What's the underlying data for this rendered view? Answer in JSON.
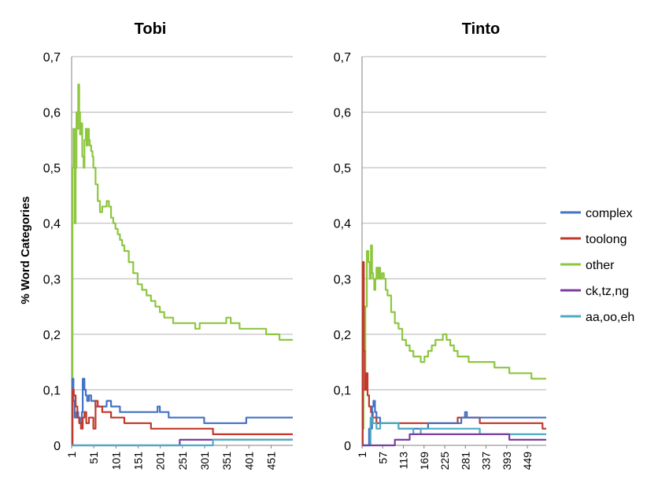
{
  "chart_data": {
    "type": "line",
    "ylabel": "% Word Categories",
    "ylim": [
      0,
      0.7
    ],
    "yticks": [
      "0",
      "0,1",
      "0,2",
      "0,3",
      "0,4",
      "0,5",
      "0,6",
      "0,7"
    ],
    "grid": true,
    "legend": {
      "position": "right",
      "entries": [
        {
          "name": "complex",
          "color": "#4472C4"
        },
        {
          "name": "toolong",
          "color": "#C0392B"
        },
        {
          "name": "other",
          "color": "#8DC63F"
        },
        {
          "name": "ck,tz,ng",
          "color": "#7B3FA0"
        },
        {
          "name": "aa,oo,eh",
          "color": "#4BACC6"
        }
      ]
    },
    "panels": [
      {
        "title": "Tobi",
        "xlim": [
          1,
          500
        ],
        "xticks": [
          "1",
          "51",
          "101",
          "151",
          "201",
          "251",
          "301",
          "351",
          "401",
          "451"
        ],
        "xtick_values": [
          1,
          51,
          101,
          151,
          201,
          251,
          301,
          351,
          401,
          451
        ],
        "series": [
          {
            "name": "other",
            "x": [
              1,
              3,
              5,
              8,
              10,
              12,
              14,
              16,
              18,
              20,
              22,
              25,
              28,
              30,
              33,
              35,
              38,
              40,
              42,
              45,
              48,
              50,
              55,
              60,
              65,
              70,
              75,
              80,
              85,
              90,
              95,
              100,
              105,
              110,
              115,
              120,
              130,
              140,
              150,
              160,
              170,
              180,
              190,
              200,
              210,
              220,
              230,
              240,
              250,
              260,
              270,
              280,
              290,
              300,
              310,
              320,
              330,
              340,
              350,
              360,
              370,
              380,
              390,
              400,
              410,
              420,
              430,
              440,
              450,
              460,
              470,
              480,
              490,
              500
            ],
            "y": [
              0.07,
              0.5,
              0.57,
              0.4,
              0.5,
              0.6,
              0.57,
              0.65,
              0.6,
              0.56,
              0.58,
              0.52,
              0.5,
              0.55,
              0.57,
              0.54,
              0.57,
              0.55,
              0.54,
              0.53,
              0.52,
              0.5,
              0.47,
              0.44,
              0.42,
              0.43,
              0.43,
              0.44,
              0.43,
              0.41,
              0.4,
              0.39,
              0.38,
              0.37,
              0.36,
              0.35,
              0.33,
              0.31,
              0.29,
              0.28,
              0.27,
              0.26,
              0.25,
              0.24,
              0.23,
              0.23,
              0.22,
              0.22,
              0.22,
              0.22,
              0.22,
              0.21,
              0.22,
              0.22,
              0.22,
              0.22,
              0.22,
              0.22,
              0.23,
              0.22,
              0.22,
              0.21,
              0.21,
              0.21,
              0.21,
              0.21,
              0.21,
              0.2,
              0.2,
              0.2,
              0.19,
              0.19,
              0.19,
              0.19
            ]
          },
          {
            "name": "complex",
            "x": [
              1,
              3,
              5,
              8,
              12,
              16,
              20,
              24,
              26,
              30,
              33,
              36,
              40,
              45,
              50,
              55,
              60,
              70,
              80,
              90,
              100,
              110,
              120,
              130,
              150,
              170,
              190,
              195,
              200,
              220,
              240,
              260,
              280,
              300,
              320,
              340,
              360,
              380,
              390,
              395,
              400,
              420,
              450,
              470,
              500
            ],
            "y": [
              0.0,
              0.12,
              0.08,
              0.05,
              0.06,
              0.05,
              0.04,
              0.06,
              0.12,
              0.1,
              0.09,
              0.08,
              0.09,
              0.08,
              0.08,
              0.07,
              0.07,
              0.07,
              0.08,
              0.07,
              0.07,
              0.06,
              0.06,
              0.06,
              0.06,
              0.06,
              0.06,
              0.07,
              0.06,
              0.05,
              0.05,
              0.05,
              0.05,
              0.04,
              0.04,
              0.04,
              0.04,
              0.04,
              0.04,
              0.05,
              0.05,
              0.05,
              0.05,
              0.05,
              0.05
            ]
          },
          {
            "name": "toolong",
            "x": [
              1,
              3,
              6,
              10,
              14,
              18,
              22,
              26,
              30,
              34,
              40,
              45,
              50,
              55,
              60,
              70,
              80,
              90,
              100,
              110,
              120,
              140,
              160,
              180,
              200,
              220,
              250,
              280,
              300,
              320,
              340,
              360,
              380,
              400,
              420,
              440,
              460,
              480,
              500
            ],
            "y": [
              0.0,
              0.1,
              0.09,
              0.07,
              0.05,
              0.04,
              0.03,
              0.05,
              0.06,
              0.04,
              0.05,
              0.05,
              0.03,
              0.08,
              0.07,
              0.06,
              0.06,
              0.05,
              0.05,
              0.05,
              0.04,
              0.04,
              0.04,
              0.03,
              0.03,
              0.03,
              0.03,
              0.03,
              0.03,
              0.02,
              0.02,
              0.02,
              0.02,
              0.02,
              0.02,
              0.02,
              0.02,
              0.02,
              0.02
            ]
          },
          {
            "name": "ck,tz,ng",
            "x": [
              1,
              240,
              245,
              500
            ],
            "y": [
              0.0,
              0.0,
              0.01,
              0.01
            ]
          },
          {
            "name": "aa,oo,eh",
            "x": [
              1,
              315,
              320,
              500
            ],
            "y": [
              0.0,
              0.0,
              0.01,
              0.01
            ]
          }
        ]
      },
      {
        "title": "Tinto",
        "xlim": [
          1,
          500
        ],
        "xticks": [
          "1",
          "57",
          "113",
          "169",
          "225",
          "281",
          "337",
          "393",
          "449"
        ],
        "xtick_values": [
          1,
          57,
          113,
          169,
          225,
          281,
          337,
          393,
          449
        ],
        "series": [
          {
            "name": "other",
            "x": [
              1,
              5,
              10,
              14,
              18,
              22,
              25,
              28,
              31,
              34,
              37,
              40,
              43,
              46,
              50,
              55,
              60,
              65,
              70,
              80,
              90,
              100,
              110,
              120,
              130,
              140,
              150,
              160,
              170,
              180,
              190,
              200,
              210,
              220,
              225,
              230,
              240,
              250,
              260,
              270,
              280,
              290,
              300,
              320,
              340,
              360,
              380,
              400,
              420,
              440,
              460,
              480,
              500
            ],
            "y": [
              0.03,
              0.1,
              0.25,
              0.35,
              0.33,
              0.3,
              0.36,
              0.31,
              0.3,
              0.28,
              0.3,
              0.32,
              0.3,
              0.32,
              0.3,
              0.31,
              0.3,
              0.28,
              0.27,
              0.24,
              0.22,
              0.21,
              0.19,
              0.18,
              0.17,
              0.16,
              0.16,
              0.15,
              0.16,
              0.17,
              0.18,
              0.19,
              0.19,
              0.2,
              0.2,
              0.19,
              0.18,
              0.17,
              0.16,
              0.16,
              0.16,
              0.15,
              0.15,
              0.15,
              0.15,
              0.14,
              0.14,
              0.13,
              0.13,
              0.13,
              0.12,
              0.12,
              0.12
            ]
          },
          {
            "name": "toolong",
            "x": [
              1,
              3,
              6,
              8,
              12,
              16,
              20,
              25,
              30,
              35,
              40,
              50,
              60,
              80,
              100,
              120,
              140,
              160,
              180,
              200,
              220,
              240,
              260,
              280,
              300,
              320,
              340,
              360,
              380,
              400,
              420,
              440,
              460,
              480,
              490,
              500
            ],
            "y": [
              0.0,
              0.33,
              0.17,
              0.1,
              0.13,
              0.09,
              0.07,
              0.06,
              0.05,
              0.05,
              0.04,
              0.04,
              0.04,
              0.04,
              0.04,
              0.04,
              0.04,
              0.04,
              0.04,
              0.04,
              0.04,
              0.04,
              0.05,
              0.05,
              0.05,
              0.04,
              0.04,
              0.04,
              0.04,
              0.04,
              0.04,
              0.04,
              0.04,
              0.04,
              0.03,
              0.03
            ]
          },
          {
            "name": "complex",
            "x": [
              1,
              10,
              20,
              28,
              32,
              36,
              40,
              50,
              60,
              80,
              100,
              140,
              180,
              220,
              260,
              270,
              280,
              285,
              300,
              340,
              380,
              420,
              460,
              500
            ],
            "y": [
              0.0,
              0.0,
              0.03,
              0.07,
              0.08,
              0.06,
              0.05,
              0.04,
              0.04,
              0.04,
              0.03,
              0.03,
              0.04,
              0.04,
              0.04,
              0.05,
              0.06,
              0.05,
              0.05,
              0.05,
              0.05,
              0.05,
              0.05,
              0.05
            ]
          },
          {
            "name": "aa,oo,eh",
            "x": [
              1,
              20,
              24,
              30,
              35,
              40,
              50,
              60,
              80,
              100,
              120,
              140,
              160,
              180,
              200,
              240,
              280,
              320,
              360,
              400,
              440,
              480,
              500
            ],
            "y": [
              0.0,
              0.0,
              0.05,
              0.04,
              0.04,
              0.03,
              0.04,
              0.04,
              0.04,
              0.03,
              0.03,
              0.02,
              0.03,
              0.03,
              0.03,
              0.03,
              0.03,
              0.02,
              0.02,
              0.02,
              0.02,
              0.02,
              0.02
            ]
          },
          {
            "name": "ck,tz,ng",
            "x": [
              1,
              80,
              90,
              110,
              130,
              170,
              250,
              300,
              360,
              400,
              460,
              500
            ],
            "y": [
              0.0,
              0.0,
              0.01,
              0.01,
              0.02,
              0.02,
              0.02,
              0.02,
              0.02,
              0.01,
              0.01,
              0.01
            ]
          }
        ]
      }
    ]
  }
}
